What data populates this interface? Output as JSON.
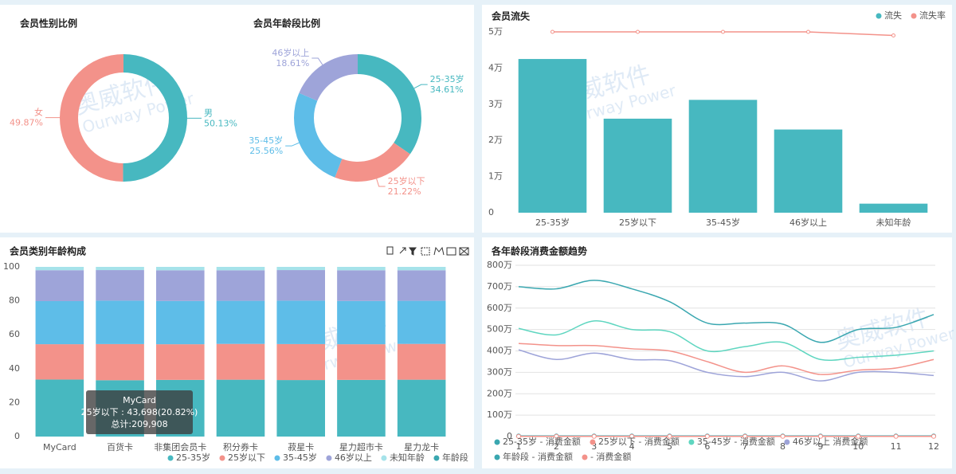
{
  "chart_data": [
    {
      "type": "pie",
      "title": "会员性别比例",
      "categories": [
        "男",
        "女"
      ],
      "values": [
        50.13,
        49.87
      ],
      "value_labels": [
        "50.13%",
        "49.87%"
      ],
      "colors": [
        "#47b8c0",
        "#f3928a"
      ]
    },
    {
      "type": "pie",
      "title": "会员年龄段比例",
      "categories": [
        "25-35岁",
        "25岁以下",
        "35-45岁",
        "46岁以上"
      ],
      "values": [
        34.61,
        21.22,
        25.56,
        18.61
      ],
      "value_labels": [
        "34.61%",
        "21.22%",
        "25.56%",
        "18.61%"
      ],
      "colors": [
        "#47b8c0",
        "#f3928a",
        "#5ebde8",
        "#9ea4d9"
      ]
    },
    {
      "type": "bar",
      "title": "会员流失",
      "categories": [
        "25-35岁",
        "25岁以下",
        "35-45岁",
        "46岁以上",
        "未知年龄"
      ],
      "series": [
        {
          "name": "流失",
          "color": "#47b8c0",
          "values": [
            42500,
            26000,
            31200,
            23000,
            2500
          ]
        },
        {
          "name": "流失率",
          "color": "#f3928a",
          "type": "line",
          "axis": "y2",
          "values": [
            1,
            1,
            1,
            1,
            0.98
          ]
        }
      ],
      "ylim": [
        0,
        50000
      ],
      "yticks": [
        0,
        {
          "value": 10000,
          "label": "1万"
        },
        {
          "value": 20000,
          "label": "2万"
        },
        {
          "value": 30000,
          "label": "3万"
        },
        {
          "value": 40000,
          "label": "4万"
        },
        {
          "value": 50000,
          "label": "5万"
        }
      ],
      "y2lim": [
        0,
        1
      ]
    },
    {
      "type": "stacked_bar",
      "title": "会员类别年龄构成",
      "categories": [
        "MyCard",
        "百货卡",
        "非集团会员卡",
        "积分券卡",
        "菽星卡",
        "星力超市卡",
        "星力龙卡"
      ],
      "series": [
        {
          "name": "25-35岁",
          "color": "#47b8c0",
          "values": [
            33.6,
            33.2,
            33.4,
            33.5,
            33.3,
            33.4,
            33.5
          ]
        },
        {
          "name": "25岁以下",
          "color": "#f3928a",
          "values": [
            20.82,
            21.3,
            21.0,
            21.1,
            21.2,
            21.0,
            21.1
          ]
        },
        {
          "name": "35-45岁",
          "color": "#5ebde8",
          "values": [
            25.4,
            25.6,
            25.5,
            25.4,
            25.6,
            25.5,
            25.4
          ]
        },
        {
          "name": "46岁以上",
          "color": "#9ea4d9",
          "values": [
            18.2,
            18.0,
            18.1,
            18.0,
            18.0,
            18.1,
            18.0
          ]
        },
        {
          "name": "未知年龄",
          "color": "#a6e3ea",
          "values": [
            1.98,
            1.9,
            2.0,
            2.0,
            1.9,
            2.0,
            2.0
          ]
        },
        {
          "name": "年龄段",
          "color": "#3aa7b0",
          "values": [
            null,
            null,
            null,
            null,
            null,
            null,
            null
          ]
        }
      ],
      "ylim": [
        0,
        100
      ],
      "yticks": [
        0,
        20,
        40,
        60,
        80,
        100
      ],
      "tooltip": {
        "title": "MyCard",
        "lines": [
          "25岁以下 : 43,698(20.82%)",
          "总计:209,908"
        ]
      }
    },
    {
      "type": "line",
      "title": "各年龄段消费金额趋势",
      "x": [
        1,
        2,
        3,
        4,
        5,
        6,
        7,
        8,
        9,
        10,
        11,
        12
      ],
      "series": [
        {
          "name": "25-35岁 - 消费金额",
          "color": "#3aa7b0",
          "values": [
            700,
            690,
            730,
            690,
            630,
            530,
            530,
            525,
            440,
            500,
            510,
            570
          ]
        },
        {
          "name": "25岁以下 - 消费金额",
          "color": "#f3928a",
          "values": [
            435,
            425,
            425,
            410,
            400,
            350,
            300,
            330,
            290,
            310,
            320,
            360
          ]
        },
        {
          "name": "35-45岁 - 消费金额",
          "color": "#5fd6c0",
          "values": [
            505,
            475,
            540,
            500,
            490,
            400,
            420,
            440,
            360,
            370,
            380,
            400
          ]
        },
        {
          "name": "46岁以上 消费金额",
          "color": "#9ea4d9",
          "values": [
            405,
            360,
            390,
            360,
            355,
            300,
            280,
            300,
            260,
            300,
            300,
            285
          ]
        },
        {
          "name": "年龄段 - 消费金额",
          "color": "#3aa7b0",
          "markers": true,
          "values": [
            3,
            3,
            3,
            3,
            3,
            3,
            3,
            3,
            3,
            3,
            3,
            3
          ]
        },
        {
          "name": "- 消费金额",
          "color": "#f3928a",
          "markers": true,
          "values": [
            1,
            1,
            1,
            1,
            1,
            1,
            1,
            1,
            1,
            1,
            1,
            1
          ]
        }
      ],
      "xlim": [
        1,
        12
      ],
      "xticks": [
        1,
        2,
        3,
        4,
        5,
        6,
        7,
        8,
        9,
        10,
        11,
        12
      ],
      "ylim": [
        0,
        800
      ],
      "yticks": [
        0,
        {
          "value": 100,
          "label": "100万"
        },
        {
          "value": 200,
          "label": "200万"
        },
        {
          "value": 300,
          "label": "300万"
        },
        {
          "value": 400,
          "label": "400万"
        },
        {
          "value": 500,
          "label": "500万"
        },
        {
          "value": 600,
          "label": "600万"
        },
        {
          "value": 700,
          "label": "700万"
        },
        {
          "value": 800,
          "label": "800万"
        }
      ],
      "grid": true
    }
  ],
  "watermark": {
    "title": "奥威软件",
    "subtitle": "Ourway Power"
  }
}
